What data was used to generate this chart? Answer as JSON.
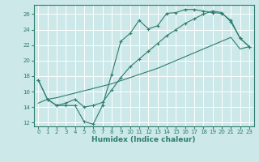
{
  "xlabel": "Humidex (Indice chaleur)",
  "ylabel": "",
  "bg_color": "#cce8e8",
  "grid_color": "#b8d8d8",
  "line_color": "#2d7d6e",
  "xlim": [
    -0.5,
    23.5
  ],
  "ylim": [
    11.5,
    27.2
  ],
  "xticks": [
    0,
    1,
    2,
    3,
    4,
    5,
    6,
    7,
    8,
    9,
    10,
    11,
    12,
    13,
    14,
    15,
    16,
    17,
    18,
    19,
    20,
    21,
    22,
    23
  ],
  "yticks": [
    12,
    14,
    16,
    18,
    20,
    22,
    24,
    26
  ],
  "curve1_x": [
    0,
    1,
    2,
    3,
    4,
    5,
    6,
    7,
    8,
    9,
    10,
    11,
    12,
    13,
    14,
    15,
    16,
    17,
    18,
    19,
    20,
    21,
    22,
    23
  ],
  "curve1_y": [
    17.5,
    15.0,
    14.2,
    14.2,
    14.2,
    12.1,
    11.8,
    14.2,
    18.2,
    22.5,
    23.5,
    25.2,
    24.1,
    24.5,
    26.1,
    26.2,
    26.6,
    26.6,
    26.4,
    26.2,
    26.1,
    25.2,
    22.9,
    21.8
  ],
  "curve2_x": [
    0,
    1,
    2,
    3,
    4,
    5,
    6,
    7,
    8,
    9,
    10,
    11,
    12,
    13,
    14,
    15,
    16,
    17,
    18,
    19,
    20,
    21,
    22,
    23
  ],
  "curve2_y": [
    17.5,
    15.0,
    14.2,
    14.5,
    15.0,
    14.0,
    14.2,
    14.6,
    16.2,
    17.8,
    19.2,
    20.2,
    21.2,
    22.2,
    23.2,
    24.0,
    24.8,
    25.4,
    26.0,
    26.4,
    26.2,
    25.0,
    22.9,
    21.8
  ],
  "curve3_x": [
    0,
    1,
    2,
    3,
    4,
    5,
    6,
    7,
    8,
    9,
    10,
    11,
    12,
    13,
    14,
    15,
    16,
    17,
    18,
    19,
    20,
    21,
    22,
    23
  ],
  "curve3_y": [
    14.5,
    15.0,
    15.2,
    15.5,
    15.8,
    16.1,
    16.4,
    16.7,
    17.0,
    17.4,
    17.8,
    18.2,
    18.6,
    19.0,
    19.5,
    20.0,
    20.5,
    21.0,
    21.5,
    22.0,
    22.5,
    23.0,
    21.5,
    21.8
  ]
}
